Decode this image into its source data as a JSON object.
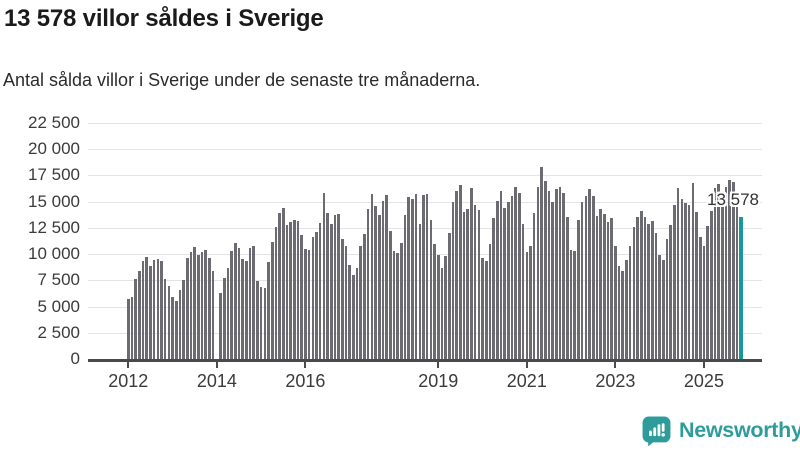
{
  "header": {
    "title": "13 578 villor såldes i Sverige",
    "subtitle": "Antal sålda villor i Sverige under de senaste tre månaderna."
  },
  "chart_data": {
    "type": "bar",
    "title": "13 578 villor såldes i Sverige",
    "xlabel": "",
    "ylabel": "",
    "unit": "sålda villor (rullande tre månader)",
    "x_start": "2012-01",
    "frequency": "monthly",
    "ylim": [
      0,
      22500
    ],
    "grid": "horizontal",
    "y_ticks": [
      0,
      2500,
      5000,
      7500,
      10000,
      12500,
      15000,
      17500,
      20000,
      22500
    ],
    "y_tick_labels": [
      "0",
      "2 500",
      "5 000",
      "7 500",
      "10 000",
      "12 500",
      "15 000",
      "17 500",
      "20 000",
      "22 500"
    ],
    "x_tick_years": [
      2012,
      2014,
      2016,
      2019,
      2021,
      2023,
      2025
    ],
    "x_tick_labels": [
      "2012",
      "2014",
      "2016",
      "2019",
      "2021",
      "2023",
      "2025"
    ],
    "values": [
      5700,
      5900,
      7600,
      8400,
      9300,
      9700,
      8900,
      9400,
      9500,
      9300,
      7600,
      7000,
      5900,
      5500,
      6600,
      7500,
      9600,
      10200,
      10700,
      9900,
      10200,
      10400,
      9600,
      8400,
      null,
      6300,
      7700,
      8700,
      10300,
      11100,
      10600,
      9500,
      9300,
      10600,
      10800,
      7400,
      6900,
      6800,
      9250,
      11200,
      12600,
      13900,
      14400,
      12800,
      13100,
      13300,
      13200,
      11800,
      10500,
      10400,
      11600,
      12100,
      13000,
      15800,
      13900,
      12900,
      13700,
      13800,
      11400,
      10800,
      9000,
      8000,
      8700,
      10800,
      11900,
      14300,
      15700,
      14600,
      13700,
      15100,
      15600,
      12200,
      10300,
      10100,
      11100,
      13700,
      15400,
      15300,
      15700,
      12900,
      15600,
      15700,
      13300,
      11000,
      9900,
      8700,
      9800,
      12000,
      15000,
      16000,
      16600,
      14000,
      14300,
      16300,
      14700,
      14200,
      9600,
      9300,
      11000,
      13400,
      15100,
      16000,
      14400,
      15000,
      15500,
      16400,
      15800,
      12900,
      10200,
      10800,
      13900,
      16400,
      18300,
      17000,
      16000,
      15000,
      16200,
      16400,
      15800,
      13500,
      10400,
      10300,
      13300,
      15000,
      15500,
      16200,
      15500,
      13600,
      14300,
      13800,
      13100,
      13400,
      10800,
      8900,
      8400,
      9400,
      10800,
      12600,
      13500,
      14100,
      13500,
      12900,
      13200,
      12000,
      9900,
      9400,
      11400,
      12800,
      14700,
      16300,
      15300,
      14900,
      14700,
      16800,
      14000,
      11600,
      10800,
      12700,
      14100,
      16300,
      16700,
      15900,
      16400,
      17100,
      16900,
      15100,
      13578
    ],
    "highlight_last": true,
    "annotation": {
      "text": "13 578",
      "value": 13578
    },
    "colors": {
      "bar": "#6b6b71",
      "highlight": "#17999b",
      "grid": "#e4e4e4",
      "axis": "#4a4a4b",
      "tick_text": "#3b3b3b",
      "annotation_text": "#333333"
    }
  },
  "footer": {
    "brand": "Newsworthy",
    "brand_color": "#2f9c9c"
  }
}
